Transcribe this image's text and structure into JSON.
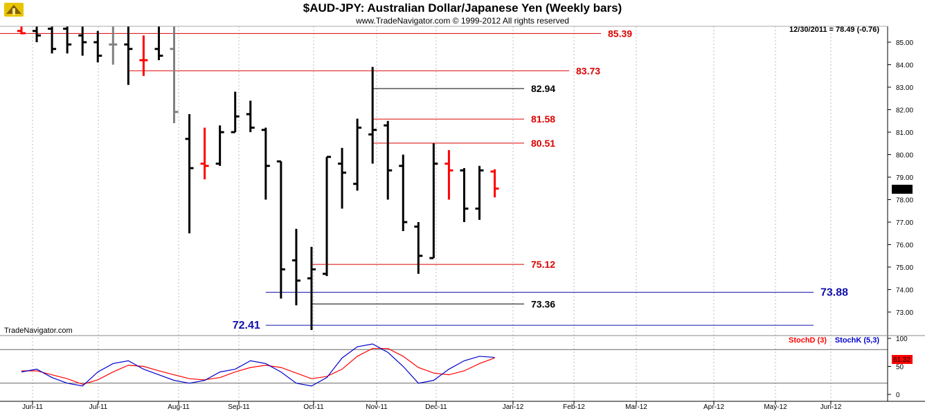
{
  "header": {
    "title": "$AUD-JPY:  Australian Dollar/Japanese Yen  (Weekly bars)",
    "subtitle": "www.TradeNavigator.com © 1999-2012 All rights reserved",
    "readout": "12/30/2011 = 78.49 (-0.76)",
    "watermark": "TradeNavigator.com",
    "last_price_tag": "78.49",
    "stoch_last_tag": "61.32"
  },
  "colors": {
    "up": "#000000",
    "down": "#ff0000",
    "gray": "#808080",
    "level_red": "#dd0000",
    "level_black": "#000000",
    "level_blue": "#1010aa",
    "stochD": "#ff0000",
    "stochK": "#0000cc"
  },
  "chart_data": [
    {
      "type": "ohlc",
      "title": "$AUD-JPY:  Australian Dollar/Japanese Yen  (Weekly bars)",
      "ylim": [
        72.2,
        85.6
      ],
      "yticks": [
        "73.00",
        "74.00",
        "75.00",
        "76.00",
        "77.00",
        "78.00",
        "79.00",
        "80.00",
        "81.00",
        "82.00",
        "83.00",
        "84.00",
        "85.00"
      ],
      "xticks": [
        "Jun-11",
        "Jul-11",
        "Aug-11",
        "Sep-11",
        "Oct-11",
        "Nov-11",
        "Dec-11",
        "Jan-12",
        "Feb-12",
        "Mar-12",
        "Apr-12",
        "May-12",
        "Jun-12"
      ],
      "bars": [
        {
          "o": 85.5,
          "h": 85.7,
          "l": 85.35,
          "c": 85.4,
          "col": "down"
        },
        {
          "o": 85.5,
          "h": 85.7,
          "l": 85.0,
          "c": 85.3,
          "col": "up"
        },
        {
          "o": 85.6,
          "h": 85.7,
          "l": 84.5,
          "c": 84.7,
          "col": "up"
        },
        {
          "o": 85.6,
          "h": 85.7,
          "l": 84.5,
          "c": 84.9,
          "col": "up"
        },
        {
          "o": 85.3,
          "h": 85.7,
          "l": 84.4,
          "c": 85.0,
          "col": "up"
        },
        {
          "o": 85.0,
          "h": 85.5,
          "l": 84.1,
          "c": 84.4,
          "col": "up"
        },
        {
          "o": 84.9,
          "h": 85.7,
          "l": 84.0,
          "c": 84.9,
          "col": "gray"
        },
        {
          "o": 84.9,
          "h": 85.7,
          "l": 83.1,
          "c": 84.7,
          "col": "up"
        },
        {
          "o": 84.2,
          "h": 85.3,
          "l": 83.5,
          "c": 84.2,
          "col": "down"
        },
        {
          "o": 84.7,
          "h": 85.7,
          "l": 84.2,
          "c": 84.4,
          "col": "up"
        },
        {
          "o": 84.7,
          "h": 85.7,
          "l": 81.4,
          "c": 81.9,
          "col": "gray"
        },
        {
          "o": 80.7,
          "h": 81.8,
          "l": 76.5,
          "c": 79.4,
          "col": "up"
        },
        {
          "o": 79.6,
          "h": 81.2,
          "l": 78.9,
          "c": 79.5,
          "col": "down"
        },
        {
          "o": 79.6,
          "h": 81.3,
          "l": 79.5,
          "c": 81.0,
          "col": "up"
        },
        {
          "o": 81.0,
          "h": 82.8,
          "l": 81.0,
          "c": 81.7,
          "col": "up"
        },
        {
          "o": 81.8,
          "h": 82.4,
          "l": 81.0,
          "c": 81.2,
          "col": "up"
        },
        {
          "o": 81.1,
          "h": 81.2,
          "l": 78.0,
          "c": 79.5,
          "col": "up"
        },
        {
          "o": 79.7,
          "h": 79.7,
          "l": 73.6,
          "c": 74.9,
          "col": "up"
        },
        {
          "o": 75.3,
          "h": 76.7,
          "l": 73.3,
          "c": 74.4,
          "col": "up"
        },
        {
          "o": 74.5,
          "h": 75.9,
          "l": 72.2,
          "c": 74.9,
          "col": "up"
        },
        {
          "o": 74.7,
          "h": 79.9,
          "l": 74.6,
          "c": 79.9,
          "col": "up"
        },
        {
          "o": 79.6,
          "h": 80.3,
          "l": 77.6,
          "c": 79.2,
          "col": "up"
        },
        {
          "o": 78.7,
          "h": 81.6,
          "l": 78.4,
          "c": 81.2,
          "col": "up"
        },
        {
          "o": 80.9,
          "h": 83.9,
          "l": 79.6,
          "c": 81.1,
          "col": "up"
        },
        {
          "o": 81.3,
          "h": 81.5,
          "l": 78.0,
          "c": 79.3,
          "col": "up"
        },
        {
          "o": 79.5,
          "h": 80.0,
          "l": 76.6,
          "c": 77.0,
          "col": "up"
        },
        {
          "o": 76.8,
          "h": 77.0,
          "l": 74.7,
          "c": 75.5,
          "col": "up"
        },
        {
          "o": 75.4,
          "h": 80.5,
          "l": 75.4,
          "c": 79.6,
          "col": "up"
        },
        {
          "o": 79.6,
          "h": 80.2,
          "l": 78.0,
          "c": 79.3,
          "col": "down"
        },
        {
          "o": 79.3,
          "h": 79.4,
          "l": 77.0,
          "c": 77.6,
          "col": "up"
        },
        {
          "o": 77.6,
          "h": 79.5,
          "l": 77.1,
          "c": 79.3,
          "col": "up"
        },
        {
          "o": 79.25,
          "h": 79.35,
          "l": 78.1,
          "c": 78.49,
          "col": "down"
        }
      ],
      "levels": [
        {
          "value": 85.39,
          "label": "85.39",
          "color": "level_red",
          "bar_from": 0,
          "bar_to": 38,
          "label_side": "right"
        },
        {
          "value": 83.73,
          "label": "83.73",
          "color": "level_red",
          "bar_from": 7,
          "bar_to": 36,
          "label_side": "right"
        },
        {
          "value": 82.94,
          "label": "82.94",
          "color": "level_black",
          "bar_from": 23,
          "bar_to": 33,
          "label_side": "right"
        },
        {
          "value": 81.58,
          "label": "81.58",
          "color": "level_red",
          "bar_from": 23,
          "bar_to": 33,
          "label_side": "right"
        },
        {
          "value": 80.51,
          "label": "80.51",
          "color": "level_red",
          "bar_from": 23,
          "bar_to": 33,
          "label_side": "right"
        },
        {
          "value": 75.12,
          "label": "75.12",
          "color": "level_red",
          "bar_from": 19,
          "bar_to": 33,
          "label_side": "right"
        },
        {
          "value": 73.88,
          "label": "73.88",
          "color": "level_blue",
          "bar_from": 16,
          "bar_to": 52,
          "label_side": "right"
        },
        {
          "value": 73.36,
          "label": "73.36",
          "color": "level_black",
          "bar_from": 19,
          "bar_to": 33,
          "label_side": "right"
        },
        {
          "value": 72.41,
          "label": "72.41",
          "color": "level_blue",
          "bar_from": 16,
          "bar_to": 52,
          "label_side": "left"
        }
      ]
    },
    {
      "type": "line",
      "title": "",
      "ylim": [
        0,
        100
      ],
      "yticks": [
        "0",
        "50",
        "100"
      ],
      "legend": [
        "StochD (3)",
        "StochK (5,3)"
      ],
      "series": [
        {
          "name": "StochD (3)",
          "values": [
            42,
            42,
            35,
            28,
            18,
            26,
            40,
            52,
            50,
            42,
            35,
            28,
            26,
            30,
            40,
            48,
            52,
            48,
            38,
            28,
            32,
            45,
            68,
            82,
            82,
            68,
            48,
            38,
            35,
            42,
            55,
            65
          ]
        },
        {
          "name": "StochK (5,3)",
          "values": [
            40,
            45,
            30,
            20,
            15,
            40,
            55,
            60,
            45,
            35,
            25,
            20,
            25,
            40,
            45,
            60,
            55,
            40,
            20,
            15,
            30,
            65,
            85,
            90,
            75,
            50,
            20,
            25,
            45,
            60,
            68,
            66
          ]
        }
      ]
    }
  ]
}
